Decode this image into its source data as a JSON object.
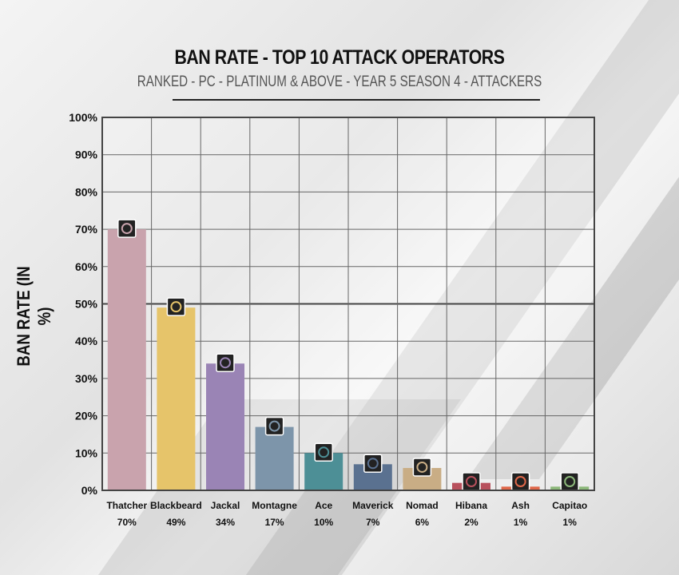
{
  "chart_data": {
    "type": "bar",
    "title": "BAN RATE - TOP 10 ATTACK OPERATORS",
    "subtitle": "RANKED - PC - PLATINUM & ABOVE - YEAR 5 SEASON 4 - ATTACKERS",
    "xlabel": "",
    "ylabel": "BAN RATE (IN %)",
    "ylim": [
      0,
      100
    ],
    "yticks": [
      "0%",
      "10%",
      "20%",
      "30%",
      "40%",
      "50%",
      "60%",
      "70%",
      "80%",
      "90%",
      "100%"
    ],
    "grid": true,
    "categories": [
      "Thatcher",
      "Blackbeard",
      "Jackal",
      "Montagne",
      "Ace",
      "Maverick",
      "Nomad",
      "Hibana",
      "Ash",
      "Capitao"
    ],
    "values": [
      70,
      49,
      34,
      17,
      10,
      7,
      6,
      2,
      1,
      1
    ],
    "value_labels": [
      "70%",
      "49%",
      "34%",
      "17%",
      "10%",
      "7%",
      "6%",
      "2%",
      "1%",
      "1%"
    ],
    "colors": [
      "#c9a3ad",
      "#e6c46a",
      "#9a84b5",
      "#7d95aa",
      "#4d8f96",
      "#5a7190",
      "#c9ad85",
      "#b8505c",
      "#e0684a",
      "#8cb87a"
    ]
  }
}
